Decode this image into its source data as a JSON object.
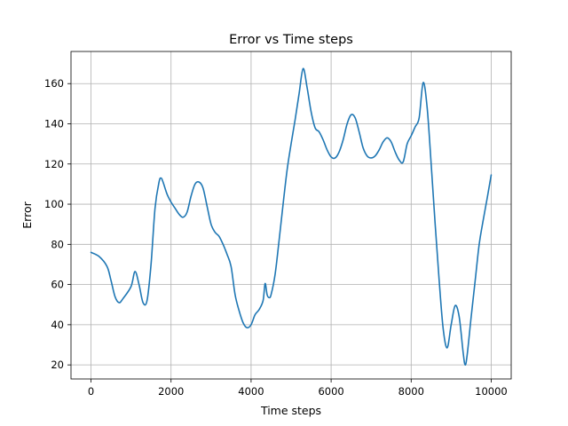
{
  "chart_data": {
    "type": "line",
    "title": "Error vs Time steps",
    "xlabel": "Time steps",
    "ylabel": "Error",
    "xlim": [
      -500,
      10500
    ],
    "ylim": [
      13,
      176
    ],
    "xticks": [
      0,
      2000,
      4000,
      6000,
      8000,
      10000
    ],
    "yticks": [
      20,
      40,
      60,
      80,
      100,
      120,
      140,
      160
    ],
    "grid": true,
    "series_color": "#1f77b4",
    "series": [
      {
        "x": [
          0,
          200,
          400,
          500,
          600,
          700,
          800,
          1000,
          1100,
          1200,
          1300,
          1400,
          1500,
          1600,
          1700,
          1750,
          1800,
          1900,
          2000,
          2100,
          2200,
          2300,
          2400,
          2500,
          2600,
          2700,
          2800,
          2900,
          3000,
          3100,
          3200,
          3300,
          3400,
          3500,
          3600,
          3700,
          3800,
          3900,
          4000,
          4100,
          4200,
          4300,
          4350,
          4400,
          4450,
          4500,
          4600,
          4700,
          4800,
          4900,
          5000,
          5100,
          5200,
          5300,
          5400,
          5500,
          5600,
          5700,
          5800,
          5900,
          6000,
          6100,
          6200,
          6300,
          6400,
          6500,
          6600,
          6700,
          6800,
          6900,
          7000,
          7100,
          7200,
          7300,
          7400,
          7500,
          7600,
          7700,
          7800,
          7900,
          8000,
          8100,
          8200,
          8300,
          8400,
          8500,
          8600,
          8700,
          8800,
          8900,
          9000,
          9100,
          9200,
          9300,
          9350,
          9400,
          9500,
          9600,
          9700,
          9800,
          9900,
          10000
        ],
        "values": [
          76,
          74,
          69,
          62,
          54,
          51,
          53,
          59,
          66.5,
          60,
          51,
          52,
          70,
          98,
          111,
          113,
          111,
          105,
          101,
          98,
          95,
          93.5,
          96,
          104,
          110,
          111,
          108,
          99,
          90,
          86,
          84,
          80,
          75,
          69,
          55,
          47,
          41,
          38.5,
          40,
          45,
          47.5,
          52,
          60.5,
          55,
          53.5,
          55,
          65,
          82,
          100,
          117,
          130,
          142,
          155,
          167.5,
          158,
          146,
          138,
          136,
          132,
          127,
          123.5,
          123,
          126,
          132,
          140,
          144.5,
          143,
          136,
          128,
          124,
          123,
          124,
          127,
          131,
          133,
          131,
          126,
          122,
          121,
          130,
          134,
          138.5,
          143,
          160.5,
          148,
          120,
          90,
          62,
          38,
          28.5,
          40,
          49.5,
          44,
          26,
          20,
          25,
          44,
          62,
          80,
          92,
          103,
          114.5
        ]
      }
    ]
  }
}
